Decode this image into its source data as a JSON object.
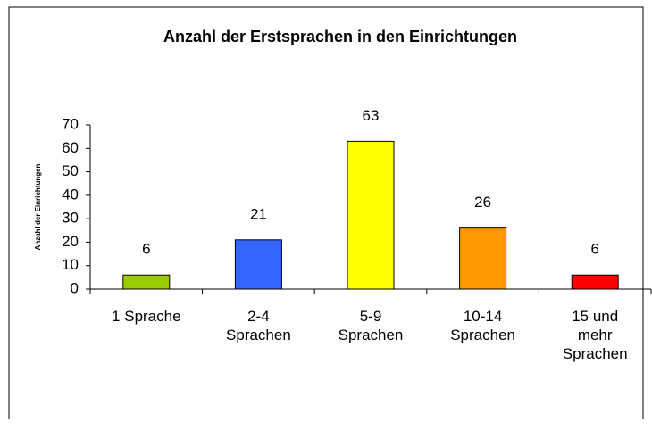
{
  "chart_data": {
    "type": "bar",
    "title": "Anzahl der Erstsprachen in den Einrichtungen",
    "y_label": "Anzahl der Einrichtungen",
    "categories": [
      "1 Sprache",
      "2-4 Sprachen",
      "5-9 Sprachen",
      "10-14 Sprachen",
      "15 und mehr Sprachen"
    ],
    "values": [
      6,
      21,
      63,
      26,
      6
    ],
    "colors": [
      "#99cc00",
      "#3366ff",
      "#ffff00",
      "#ff9900",
      "#ff0000"
    ],
    "ylim": [
      0,
      70
    ],
    "yticks": [
      0,
      10,
      20,
      30,
      40,
      50,
      60,
      70
    ]
  }
}
